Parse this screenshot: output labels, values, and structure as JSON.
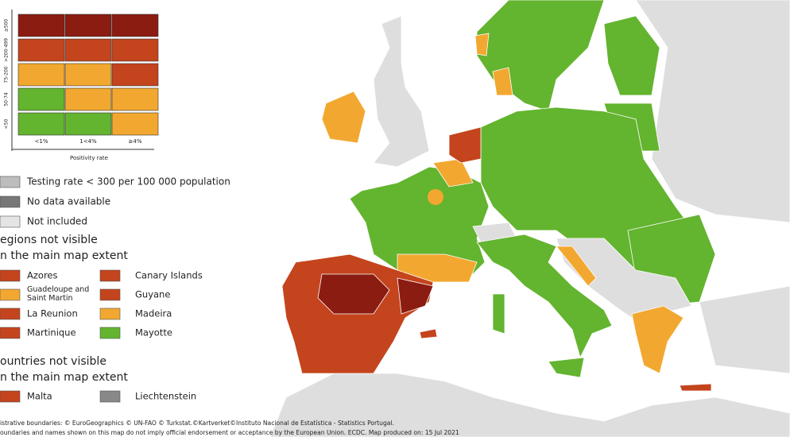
{
  "matrix": {
    "rows": [
      {
        "label": "≥500",
        "colors": [
          "#8b1c12",
          "#8b1c12",
          "#8b1c12"
        ]
      },
      {
        "label": ">200-499",
        "colors": [
          "#c4441d",
          "#c4441d",
          "#c4441d"
        ]
      },
      {
        "label": "75-200",
        "colors": [
          "#f2a830",
          "#f2a830",
          "#c4441d"
        ]
      },
      {
        "label": "50-74",
        "colors": [
          "#63b42f",
          "#f2a830",
          "#f2a830"
        ]
      },
      {
        "label": "<50",
        "colors": [
          "#63b42f",
          "#63b42f",
          "#f2a830"
        ]
      }
    ],
    "columns": [
      "<1%",
      "1<4%",
      "≥4%"
    ],
    "x_axis_title": "Positivity rate"
  },
  "legend": [
    {
      "label": "Testing rate < 300 per 100 000 population",
      "color": "#bdbdbd"
    },
    {
      "label": "No data available",
      "color": "#777777"
    },
    {
      "label": "Not included",
      "color": "#e4e4e4"
    }
  ],
  "regions": {
    "title": [
      "egions not visible",
      "n the main map extent"
    ],
    "items": [
      {
        "label": "Azores",
        "color": "#c4441d"
      },
      {
        "label": "Guadeloupe and Saint Martin",
        "color": "#f2a830"
      },
      {
        "label": "La Reunion",
        "color": "#c4441d"
      },
      {
        "label": "Martinique",
        "color": "#c4441d"
      },
      {
        "label": "Canary Islands",
        "color": "#c4441d"
      },
      {
        "label": "Guyane",
        "color": "#c4441d"
      },
      {
        "label": "Madeira",
        "color": "#f2a830"
      },
      {
        "label": "Mayotte",
        "color": "#63b42f"
      }
    ]
  },
  "countries": {
    "title": [
      "ountries not visible",
      "n the main map extent"
    ],
    "items": [
      {
        "label": "Malta",
        "color": "#c4441d"
      },
      {
        "label": "Liechtenstein",
        "color": "#888888"
      }
    ]
  },
  "footer": [
    "istrative boundaries: © EuroGeographics © UN-FAO © Turkstat.©Kartverket©Instituto Nacional de Estatística - Statistics Portugal.",
    "oundaries and names shown on this map do not imply official endorsement or acceptance by the European Union. ECDC. Map produced on: 15 Jul 2021"
  ]
}
